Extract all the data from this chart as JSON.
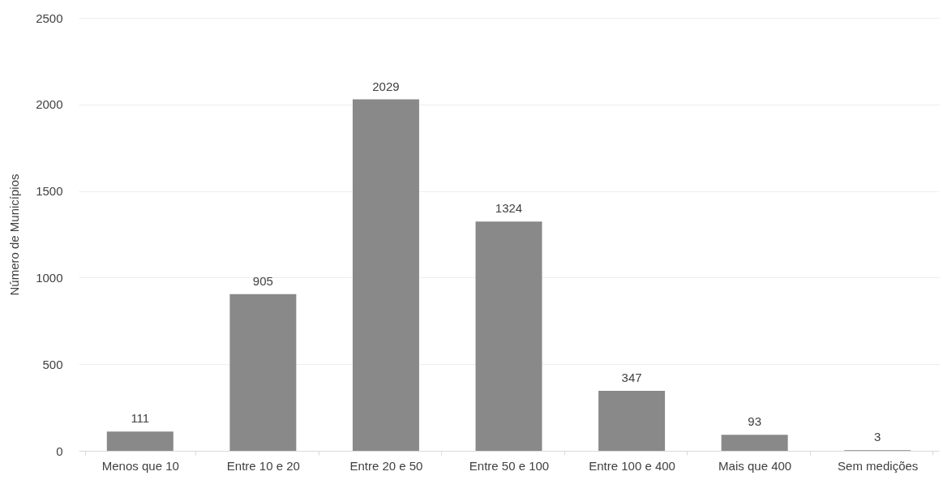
{
  "chart_data": {
    "type": "bar",
    "ylabel": "Número de Municípios",
    "categories": [
      "Menos que 10",
      "Entre 10 e 20",
      "Entre 20 e 50",
      "Entre 50 e 100",
      "Entre 100 e 400",
      "Mais que 400",
      "Sem medições"
    ],
    "values": [
      111,
      905,
      2029,
      1324,
      347,
      93,
      3
    ],
    "color": "#898989",
    "ylim": [
      0,
      2500
    ],
    "yticks": [
      0,
      500,
      1000,
      1500,
      2000,
      2500
    ],
    "grid": "y",
    "data_labels": true
  }
}
